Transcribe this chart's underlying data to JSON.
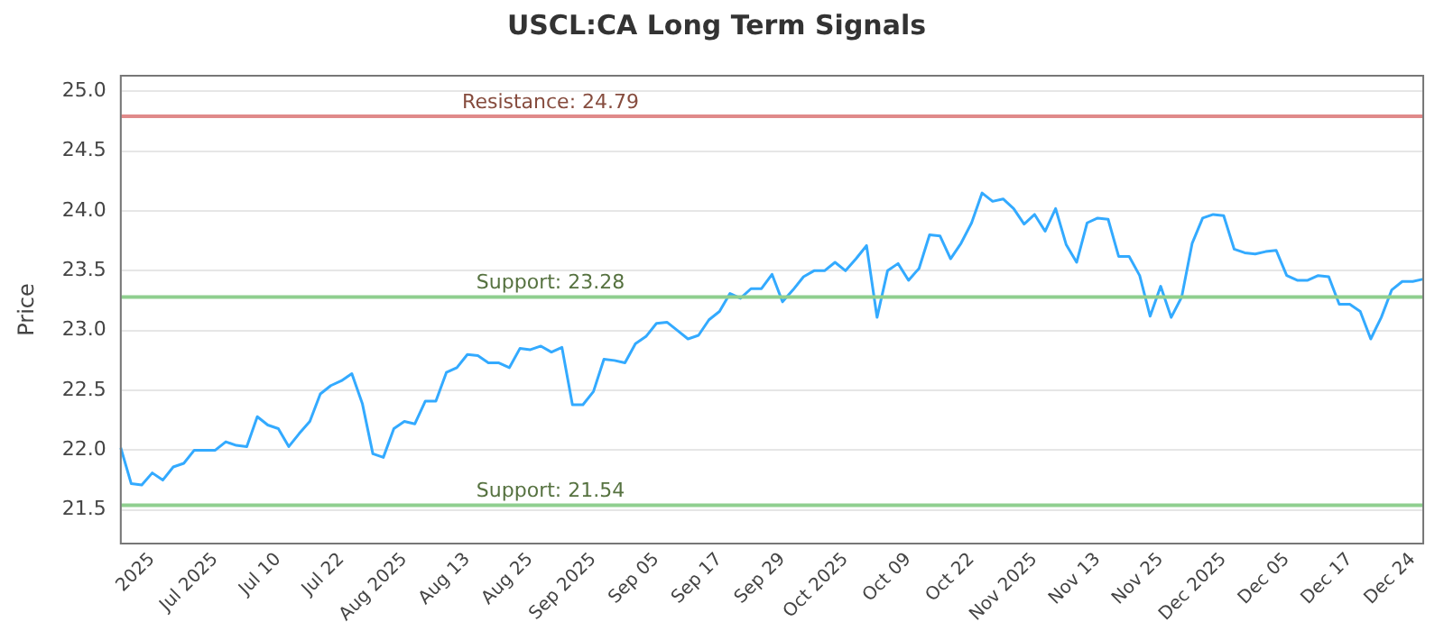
{
  "chart_data": {
    "type": "line",
    "title": "USCL:CA Long Term Signals",
    "ylabel": "Price",
    "categories": [
      null,
      null,
      null,
      "2025",
      null,
      null,
      null,
      null,
      null,
      "Jul 2025",
      null,
      null,
      null,
      null,
      null,
      "Jul 10",
      null,
      null,
      null,
      null,
      null,
      "Jul 22",
      null,
      null,
      null,
      null,
      null,
      "Aug 2025",
      null,
      null,
      null,
      null,
      null,
      "Aug 13",
      null,
      null,
      null,
      null,
      null,
      "Aug 25",
      null,
      null,
      null,
      null,
      null,
      "Sep 2025",
      null,
      null,
      null,
      null,
      null,
      "Sep 05",
      null,
      null,
      null,
      null,
      null,
      "Sep 17",
      null,
      null,
      null,
      null,
      null,
      "Sep 29",
      null,
      null,
      null,
      null,
      null,
      "Oct 2025",
      null,
      null,
      null,
      null,
      null,
      "Oct 09",
      null,
      null,
      null,
      null,
      null,
      "Oct 22",
      null,
      null,
      null,
      null,
      null,
      "Nov 2025",
      null,
      null,
      null,
      null,
      null,
      "Nov 13",
      null,
      null,
      null,
      null,
      null,
      "Nov 25",
      null,
      null,
      null,
      null,
      null,
      "Dec 2025",
      null,
      null,
      null,
      null,
      null,
      "Dec 05",
      null,
      null,
      null,
      null,
      null,
      "Dec 17",
      null,
      null,
      null,
      null,
      null,
      "Dec 24",
      null
    ],
    "series": [
      {
        "color": "#33aaff",
        "values": [
          22.02,
          21.72,
          21.71,
          21.81,
          21.75,
          21.86,
          21.89,
          22.0,
          22.0,
          22.0,
          22.07,
          22.04,
          22.03,
          22.28,
          22.21,
          22.18,
          22.03,
          22.14,
          22.24,
          22.47,
          22.54,
          22.58,
          22.64,
          22.39,
          21.97,
          21.94,
          22.18,
          22.24,
          22.22,
          22.41,
          22.41,
          22.65,
          22.69,
          22.8,
          22.79,
          22.73,
          22.73,
          22.69,
          22.85,
          22.84,
          22.87,
          22.82,
          22.86,
          22.38,
          22.38,
          22.49,
          22.76,
          22.75,
          22.73,
          22.89,
          22.95,
          23.06,
          23.07,
          23.0,
          22.93,
          22.96,
          23.09,
          23.16,
          23.31,
          23.27,
          23.35,
          23.35,
          23.47,
          23.24,
          23.34,
          23.45,
          23.5,
          23.5,
          23.57,
          23.5,
          23.6,
          23.71,
          23.11,
          23.5,
          23.56,
          23.42,
          23.52,
          23.8,
          23.79,
          23.6,
          23.73,
          23.9,
          24.15,
          24.08,
          24.1,
          24.02,
          23.89,
          23.97,
          23.83,
          24.02,
          23.72,
          23.57,
          23.9,
          23.94,
          23.93,
          23.62,
          23.62,
          23.46,
          23.12,
          23.37,
          23.11,
          23.28,
          23.73,
          23.94,
          23.97,
          23.96,
          23.68,
          23.65,
          23.64,
          23.66,
          23.67,
          23.46,
          23.42,
          23.42,
          23.46,
          23.45,
          23.22,
          23.22,
          23.16,
          22.93,
          23.11,
          23.34,
          23.41,
          23.41,
          23.43
        ]
      }
    ],
    "ylim": [
      21.22,
      25.13
    ],
    "yticks": [
      {
        "value": 21.5,
        "label": "21.5"
      },
      {
        "value": 22,
        "label": "22.0"
      },
      {
        "value": 22.5,
        "label": "22.5"
      },
      {
        "value": 23,
        "label": "23.0"
      },
      {
        "value": 23.5,
        "label": "23.5"
      },
      {
        "value": 24,
        "label": "24.0"
      },
      {
        "value": 24.5,
        "label": "24.5"
      },
      {
        "value": 25,
        "label": "25.0"
      }
    ],
    "ref_lines": [
      {
        "axis": "y",
        "value": 24.79,
        "label": "Resistance: 24.79",
        "color": "#e08a8a"
      },
      {
        "axis": "y",
        "value": 23.28,
        "label": "Support: 23.28",
        "color": "#8fcf8f"
      },
      {
        "axis": "y",
        "value": 21.54,
        "label": "Support: 21.54",
        "color": "#8fcf8f"
      }
    ],
    "grid": "y",
    "legend": false,
    "marker": "none",
    "line_style": "solid"
  }
}
